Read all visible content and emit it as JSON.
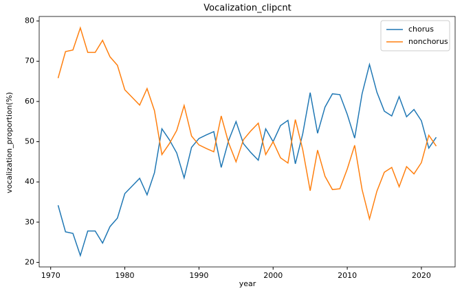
{
  "chart_data": {
    "type": "line",
    "title": "Vocalization_clipcnt",
    "xlabel": "year",
    "ylabel": "vocalization_proportion(%)",
    "x": [
      1971,
      1972,
      1973,
      1974,
      1975,
      1976,
      1977,
      1978,
      1979,
      1980,
      1981,
      1982,
      1983,
      1984,
      1985,
      1986,
      1987,
      1988,
      1989,
      1990,
      1991,
      1992,
      1993,
      1994,
      1995,
      1996,
      1997,
      1998,
      1999,
      2000,
      2001,
      2002,
      2003,
      2004,
      2005,
      2006,
      2007,
      2008,
      2009,
      2010,
      2011,
      2012,
      2013,
      2014,
      2015,
      2016,
      2017,
      2018,
      2019,
      2020,
      2021,
      2022
    ],
    "series": [
      {
        "name": "chorus",
        "color": "#1f77b4",
        "values": [
          34.2,
          27.6,
          27.2,
          21.7,
          27.8,
          27.8,
          24.8,
          28.9,
          31.0,
          37.1,
          39.0,
          40.9,
          36.8,
          42.3,
          53.2,
          50.5,
          47.2,
          41.0,
          48.6,
          50.8,
          51.7,
          52.5,
          43.6,
          50.3,
          55.0,
          49.5,
          47.3,
          45.4,
          53.2,
          50.0,
          54.0,
          55.3,
          44.5,
          52.0,
          62.2,
          52.1,
          58.6,
          61.9,
          61.7,
          56.8,
          50.9,
          61.9,
          69.2,
          62.3,
          57.6,
          56.4,
          61.2,
          56.2,
          58.0,
          55.2,
          48.4,
          51.1
        ]
      },
      {
        "name": "nonchorus",
        "color": "#ff7f0e",
        "values": [
          65.8,
          72.4,
          72.8,
          78.3,
          72.2,
          72.2,
          75.2,
          71.1,
          69.0,
          62.9,
          61.0,
          59.1,
          63.2,
          57.7,
          46.8,
          49.5,
          52.8,
          59.0,
          51.4,
          49.2,
          48.3,
          47.5,
          56.4,
          49.7,
          45.0,
          50.5,
          52.7,
          54.6,
          46.8,
          50.0,
          46.0,
          44.7,
          55.5,
          48.0,
          37.8,
          47.9,
          41.4,
          38.1,
          38.3,
          43.2,
          49.1,
          38.1,
          30.8,
          37.7,
          42.4,
          43.6,
          38.8,
          43.8,
          42.0,
          44.8,
          51.6,
          48.9
        ]
      }
    ],
    "xlim": [
      1968.45,
      2024.55
    ],
    "xticks": [
      1970,
      1980,
      1990,
      2000,
      2010,
      2020
    ],
    "ylim": [
      18.87,
      81.13
    ],
    "yticks": [
      20,
      30,
      40,
      50,
      60,
      70,
      80
    ],
    "legend": "upper right"
  }
}
